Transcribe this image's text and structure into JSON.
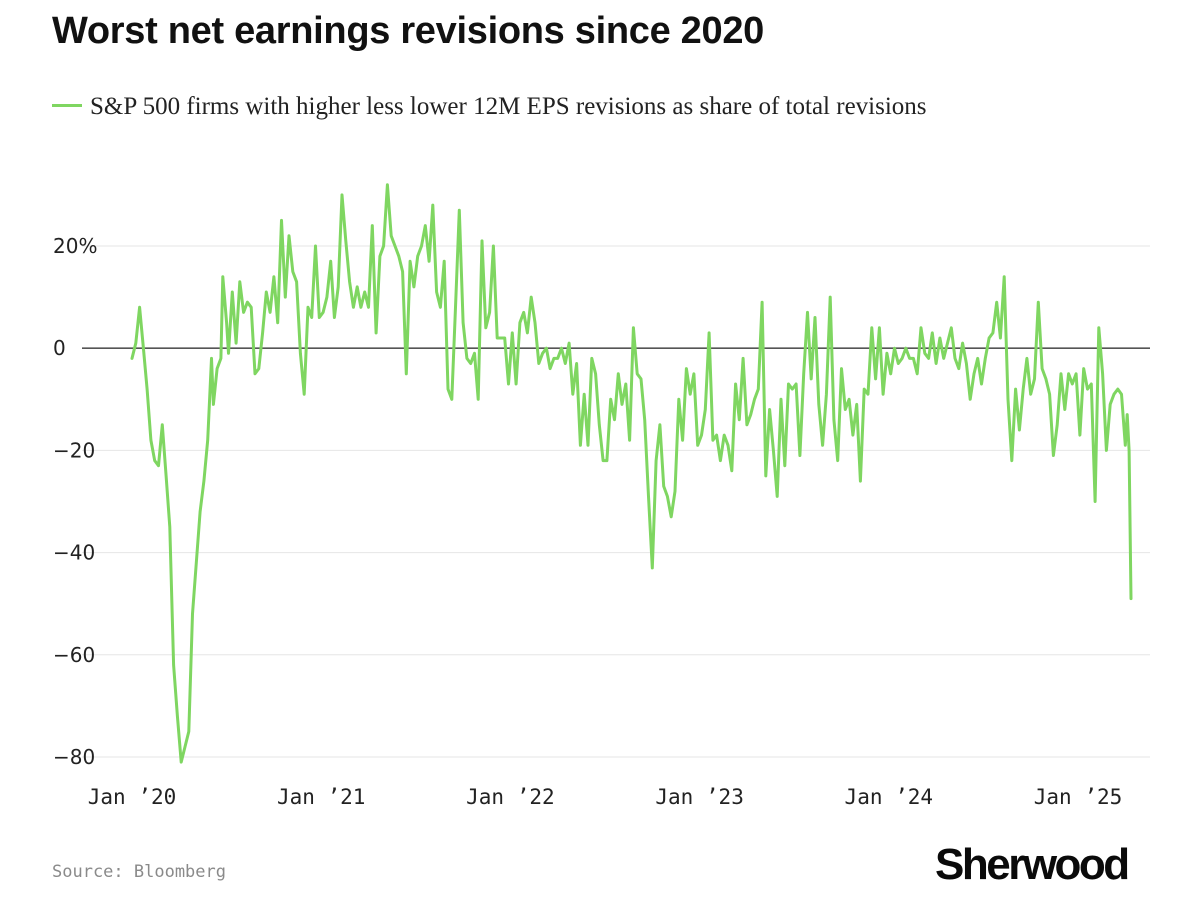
{
  "header": {
    "title": "Worst net earnings revisions since 2020"
  },
  "footer": {
    "source": "Source: Bloomberg",
    "logo": "Sherwood"
  },
  "colors": {
    "series": "#7fd661",
    "zero_line": "#555555",
    "grid": "#e6e6e6"
  },
  "chart_data": {
    "type": "line",
    "title": "Worst net earnings revisions since 2020",
    "xlabel": "",
    "ylabel": "",
    "ylim": [
      -80,
      20
    ],
    "xlim": [
      2020.0,
      2025.28
    ],
    "y_ticks": [
      {
        "value": 20,
        "label": "20%"
      },
      {
        "value": 0,
        "label": "0"
      },
      {
        "value": -20,
        "label": "−20"
      },
      {
        "value": -40,
        "label": "−40"
      },
      {
        "value": -60,
        "label": "−60"
      },
      {
        "value": -80,
        "label": "−80"
      }
    ],
    "x_ticks": [
      {
        "value": 2020.0,
        "label": "Jan ’20"
      },
      {
        "value": 2021.0,
        "label": "Jan ’21"
      },
      {
        "value": 2022.0,
        "label": "Jan ’22"
      },
      {
        "value": 2023.0,
        "label": "Jan ’23"
      },
      {
        "value": 2024.0,
        "label": "Jan ’24"
      },
      {
        "value": 2025.0,
        "label": "Jan ’25"
      }
    ],
    "grid": true,
    "legend": "top-left",
    "series": [
      {
        "name": "S&P 500 firms with higher less lower 12M EPS revisions as share of total revisions",
        "points": [
          [
            2020.0,
            -2
          ],
          [
            2020.02,
            1
          ],
          [
            2020.04,
            8
          ],
          [
            2020.06,
            0
          ],
          [
            2020.08,
            -8
          ],
          [
            2020.1,
            -18
          ],
          [
            2020.12,
            -22
          ],
          [
            2020.14,
            -23
          ],
          [
            2020.16,
            -15
          ],
          [
            2020.18,
            -25
          ],
          [
            2020.2,
            -35
          ],
          [
            2020.22,
            -62
          ],
          [
            2020.24,
            -72
          ],
          [
            2020.26,
            -81
          ],
          [
            2020.28,
            -78
          ],
          [
            2020.3,
            -75
          ],
          [
            2020.32,
            -52
          ],
          [
            2020.34,
            -42
          ],
          [
            2020.36,
            -32
          ],
          [
            2020.38,
            -26
          ],
          [
            2020.4,
            -18
          ],
          [
            2020.42,
            -2
          ],
          [
            2020.43,
            -11
          ],
          [
            2020.45,
            -4
          ],
          [
            2020.47,
            -2
          ],
          [
            2020.48,
            14
          ],
          [
            2020.5,
            5
          ],
          [
            2020.51,
            -1
          ],
          [
            2020.53,
            11
          ],
          [
            2020.55,
            1
          ],
          [
            2020.57,
            13
          ],
          [
            2020.59,
            7
          ],
          [
            2020.61,
            9
          ],
          [
            2020.63,
            8
          ],
          [
            2020.65,
            -5
          ],
          [
            2020.67,
            -4
          ],
          [
            2020.69,
            3
          ],
          [
            2020.71,
            11
          ],
          [
            2020.73,
            7
          ],
          [
            2020.75,
            14
          ],
          [
            2020.77,
            5
          ],
          [
            2020.79,
            25
          ],
          [
            2020.81,
            10
          ],
          [
            2020.83,
            22
          ],
          [
            2020.85,
            15
          ],
          [
            2020.87,
            13
          ],
          [
            2020.89,
            -1
          ],
          [
            2020.91,
            -9
          ],
          [
            2020.93,
            8
          ],
          [
            2020.95,
            6
          ],
          [
            2020.97,
            20
          ],
          [
            2020.99,
            6
          ],
          [
            2021.01,
            7
          ],
          [
            2021.03,
            10
          ],
          [
            2021.05,
            17
          ],
          [
            2021.07,
            6
          ],
          [
            2021.09,
            12
          ],
          [
            2021.11,
            30
          ],
          [
            2021.13,
            21
          ],
          [
            2021.15,
            13
          ],
          [
            2021.17,
            8
          ],
          [
            2021.19,
            12
          ],
          [
            2021.21,
            8
          ],
          [
            2021.23,
            11
          ],
          [
            2021.25,
            8
          ],
          [
            2021.27,
            24
          ],
          [
            2021.29,
            3
          ],
          [
            2021.31,
            18
          ],
          [
            2021.33,
            20
          ],
          [
            2021.35,
            32
          ],
          [
            2021.37,
            22
          ],
          [
            2021.39,
            20
          ],
          [
            2021.41,
            18
          ],
          [
            2021.43,
            15
          ],
          [
            2021.45,
            -5
          ],
          [
            2021.47,
            17
          ],
          [
            2021.49,
            12
          ],
          [
            2021.51,
            18
          ],
          [
            2021.53,
            20
          ],
          [
            2021.55,
            24
          ],
          [
            2021.57,
            17
          ],
          [
            2021.59,
            28
          ],
          [
            2021.61,
            11
          ],
          [
            2021.63,
            8
          ],
          [
            2021.65,
            17
          ],
          [
            2021.67,
            -8
          ],
          [
            2021.69,
            -10
          ],
          [
            2021.71,
            8
          ],
          [
            2021.73,
            27
          ],
          [
            2021.75,
            5
          ],
          [
            2021.77,
            -2
          ],
          [
            2021.79,
            -3
          ],
          [
            2021.81,
            -1
          ],
          [
            2021.83,
            -10
          ],
          [
            2021.85,
            21
          ],
          [
            2021.87,
            4
          ],
          [
            2021.89,
            7
          ],
          [
            2021.91,
            20
          ],
          [
            2021.93,
            2
          ],
          [
            2021.95,
            2
          ],
          [
            2021.97,
            2
          ],
          [
            2021.99,
            -7
          ],
          [
            2022.01,
            3
          ],
          [
            2022.03,
            -7
          ],
          [
            2022.05,
            5
          ],
          [
            2022.07,
            7
          ],
          [
            2022.09,
            3
          ],
          [
            2022.11,
            10
          ],
          [
            2022.13,
            5
          ],
          [
            2022.15,
            -3
          ],
          [
            2022.17,
            -1
          ],
          [
            2022.19,
            0
          ],
          [
            2022.21,
            -4
          ],
          [
            2022.23,
            -2
          ],
          [
            2022.25,
            -2
          ],
          [
            2022.27,
            0
          ],
          [
            2022.29,
            -3
          ],
          [
            2022.31,
            1
          ],
          [
            2022.33,
            -9
          ],
          [
            2022.35,
            -3
          ],
          [
            2022.37,
            -19
          ],
          [
            2022.39,
            -9
          ],
          [
            2022.41,
            -19
          ],
          [
            2022.43,
            -2
          ],
          [
            2022.45,
            -5
          ],
          [
            2022.47,
            -15
          ],
          [
            2022.49,
            -22
          ],
          [
            2022.51,
            -22
          ],
          [
            2022.53,
            -10
          ],
          [
            2022.55,
            -14
          ],
          [
            2022.57,
            -5
          ],
          [
            2022.59,
            -11
          ],
          [
            2022.61,
            -7
          ],
          [
            2022.63,
            -18
          ],
          [
            2022.65,
            4
          ],
          [
            2022.67,
            -5
          ],
          [
            2022.69,
            -6
          ],
          [
            2022.71,
            -14
          ],
          [
            2022.73,
            -29
          ],
          [
            2022.75,
            -43
          ],
          [
            2022.77,
            -22
          ],
          [
            2022.79,
            -15
          ],
          [
            2022.81,
            -27
          ],
          [
            2022.83,
            -29
          ],
          [
            2022.85,
            -33
          ],
          [
            2022.87,
            -28
          ],
          [
            2022.89,
            -10
          ],
          [
            2022.91,
            -18
          ],
          [
            2022.93,
            -4
          ],
          [
            2022.95,
            -9
          ],
          [
            2022.97,
            -5
          ],
          [
            2022.99,
            -19
          ],
          [
            2023.01,
            -17
          ],
          [
            2023.03,
            -12
          ],
          [
            2023.05,
            3
          ],
          [
            2023.07,
            -18
          ],
          [
            2023.09,
            -17
          ],
          [
            2023.11,
            -22
          ],
          [
            2023.13,
            -17
          ],
          [
            2023.15,
            -19
          ],
          [
            2023.17,
            -24
          ],
          [
            2023.19,
            -7
          ],
          [
            2023.21,
            -14
          ],
          [
            2023.23,
            -2
          ],
          [
            2023.25,
            -15
          ],
          [
            2023.27,
            -13
          ],
          [
            2023.29,
            -10
          ],
          [
            2023.31,
            -8
          ],
          [
            2023.33,
            9
          ],
          [
            2023.35,
            -25
          ],
          [
            2023.37,
            -12
          ],
          [
            2023.39,
            -20
          ],
          [
            2023.41,
            -29
          ],
          [
            2023.43,
            -10
          ],
          [
            2023.45,
            -23
          ],
          [
            2023.47,
            -7
          ],
          [
            2023.49,
            -8
          ],
          [
            2023.51,
            -7
          ],
          [
            2023.53,
            -21
          ],
          [
            2023.55,
            -5
          ],
          [
            2023.57,
            7
          ],
          [
            2023.59,
            -6
          ],
          [
            2023.61,
            6
          ],
          [
            2023.63,
            -11
          ],
          [
            2023.65,
            -19
          ],
          [
            2023.67,
            -9
          ],
          [
            2023.69,
            10
          ],
          [
            2023.71,
            -14
          ],
          [
            2023.73,
            -22
          ],
          [
            2023.75,
            -4
          ],
          [
            2023.77,
            -12
          ],
          [
            2023.79,
            -10
          ],
          [
            2023.81,
            -17
          ],
          [
            2023.83,
            -11
          ],
          [
            2023.85,
            -26
          ],
          [
            2023.87,
            -8
          ],
          [
            2023.89,
            -9
          ],
          [
            2023.91,
            4
          ],
          [
            2023.93,
            -6
          ],
          [
            2023.95,
            4
          ],
          [
            2023.97,
            -9
          ],
          [
            2023.99,
            -1
          ],
          [
            2024.01,
            -5
          ],
          [
            2024.03,
            0
          ],
          [
            2024.05,
            -3
          ],
          [
            2024.07,
            -2
          ],
          [
            2024.09,
            0
          ],
          [
            2024.11,
            -2
          ],
          [
            2024.13,
            -2
          ],
          [
            2024.15,
            -5
          ],
          [
            2024.17,
            4
          ],
          [
            2024.19,
            -1
          ],
          [
            2024.21,
            -2
          ],
          [
            2024.23,
            3
          ],
          [
            2024.25,
            -3
          ],
          [
            2024.27,
            2
          ],
          [
            2024.29,
            -2
          ],
          [
            2024.31,
            1
          ],
          [
            2024.33,
            4
          ],
          [
            2024.35,
            -2
          ],
          [
            2024.37,
            -4
          ],
          [
            2024.39,
            1
          ],
          [
            2024.41,
            -3
          ],
          [
            2024.43,
            -10
          ],
          [
            2024.45,
            -5
          ],
          [
            2024.47,
            -2
          ],
          [
            2024.49,
            -7
          ],
          [
            2024.51,
            -2
          ],
          [
            2024.53,
            2
          ],
          [
            2024.55,
            3
          ],
          [
            2024.57,
            9
          ],
          [
            2024.59,
            2
          ],
          [
            2024.61,
            14
          ],
          [
            2024.63,
            -10
          ],
          [
            2024.65,
            -22
          ],
          [
            2024.67,
            -8
          ],
          [
            2024.69,
            -16
          ],
          [
            2024.71,
            -8
          ],
          [
            2024.73,
            -2
          ],
          [
            2024.75,
            -9
          ],
          [
            2024.77,
            -6
          ],
          [
            2024.79,
            9
          ],
          [
            2024.81,
            -4
          ],
          [
            2024.83,
            -6
          ],
          [
            2024.85,
            -9
          ],
          [
            2024.87,
            -21
          ],
          [
            2024.89,
            -15
          ],
          [
            2024.91,
            -5
          ],
          [
            2024.93,
            -12
          ],
          [
            2024.95,
            -5
          ],
          [
            2024.97,
            -7
          ],
          [
            2024.99,
            -5
          ],
          [
            2025.01,
            -17
          ],
          [
            2025.03,
            -4
          ],
          [
            2025.05,
            -8
          ],
          [
            2025.07,
            -7
          ],
          [
            2025.09,
            -30
          ],
          [
            2025.11,
            4
          ],
          [
            2025.13,
            -5
          ],
          [
            2025.15,
            -20
          ],
          [
            2025.17,
            -11
          ],
          [
            2025.19,
            -9
          ],
          [
            2025.21,
            -8
          ],
          [
            2025.23,
            -9
          ],
          [
            2025.25,
            -19
          ],
          [
            2025.26,
            -13
          ],
          [
            2025.27,
            -20
          ],
          [
            2025.28,
            -49
          ]
        ]
      }
    ]
  }
}
